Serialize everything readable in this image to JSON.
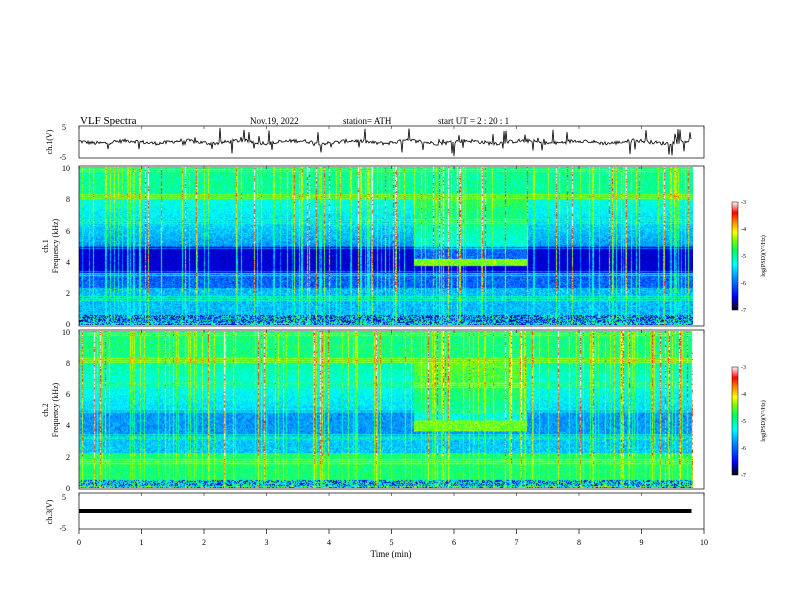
{
  "header": {
    "title": "VLF  Spectra",
    "date": "Nov.19, 2022",
    "station": "station= ATH",
    "start": "start  UT  =   2  : 20 : 1"
  },
  "chart_data": [
    {
      "type": "line",
      "ylabel": "ch.1(V)",
      "ylim": [
        -5,
        5
      ],
      "yticks": [
        "5",
        "-5"
      ],
      "x_range_min": [
        0,
        9.8
      ]
    },
    {
      "type": "heatmap",
      "ylabel_line1": "ch.1",
      "ylabel_line2": "Frequency  (kHz)",
      "ylim": [
        0,
        10
      ],
      "yticks": [
        "10",
        "8",
        "6",
        "4",
        "2",
        "0"
      ],
      "colorbar": {
        "label": "log(PSD)(V²/Hz)",
        "ticks": [
          "-3",
          "-4",
          "-5",
          "-6",
          "-7"
        ],
        "range": [
          -7,
          -3
        ]
      },
      "features": {
        "dark_band_khz": [
          3.3,
          5.0
        ],
        "signal_band_khz": [
          3.7,
          4.2
        ],
        "signal_time_min": [
          5.35,
          7.15
        ],
        "low_band_khz": [
          0,
          2.3
        ]
      }
    },
    {
      "type": "heatmap",
      "ylabel_line1": "ch.2",
      "ylabel_line2": "Frequency  (kHz)",
      "ylim": [
        0,
        10
      ],
      "yticks": [
        "10",
        "8",
        "6",
        "4",
        "2",
        "0"
      ],
      "colorbar": {
        "label": "log(PSD)(V²/Hz)",
        "ticks": [
          "-3",
          "-4",
          "-5",
          "-6",
          "-7"
        ],
        "range": [
          -7,
          -3
        ]
      },
      "features": {
        "signal_band_khz": [
          3.6,
          4.3
        ],
        "signal_time_min": [
          5.35,
          7.15
        ]
      }
    },
    {
      "type": "line",
      "ylabel": "ch.3(V)",
      "ylim": [
        -5,
        5
      ],
      "yticks": [
        "5",
        "-5"
      ],
      "level_v": 0,
      "x_range_min": [
        0,
        9.8
      ]
    }
  ],
  "xaxis": {
    "label": "Time  (min)",
    "range": [
      0,
      10
    ],
    "ticks": [
      "0",
      "1",
      "2",
      "3",
      "4",
      "5",
      "6",
      "7",
      "8",
      "9",
      "10"
    ]
  },
  "colors": {
    "scale": [
      "#000000",
      "#000090",
      "#0000ff",
      "#0090ff",
      "#00ffff",
      "#00ff80",
      "#80ff00",
      "#ffff00",
      "#ff8000",
      "#ff0000",
      "#ffffff"
    ]
  }
}
